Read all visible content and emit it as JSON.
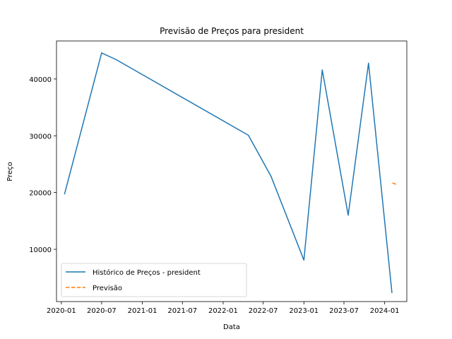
{
  "chart_data": {
    "type": "line",
    "title": "Previsão de Preços para president",
    "xlabel": "Data",
    "ylabel": "Preço",
    "x_tick_labels": [
      "2020-01",
      "2020-07",
      "2021-01",
      "2021-07",
      "2022-01",
      "2022-07",
      "2023-01",
      "2023-07",
      "2024-01"
    ],
    "x_tick_dates": [
      "2020-01-01",
      "2020-07-01",
      "2021-01-01",
      "2021-07-01",
      "2022-01-01",
      "2022-07-01",
      "2023-01-01",
      "2023-07-01",
      "2024-01-01"
    ],
    "y_ticks": [
      10000,
      20000,
      30000,
      40000
    ],
    "y_tick_labels": [
      "10000",
      "20000",
      "30000",
      "40000"
    ],
    "xlim": [
      "2019-12-10",
      "2024-04-10"
    ],
    "ylim": [
      800,
      46700
    ],
    "legend_position": "lower-left",
    "grid": false,
    "series": [
      {
        "name": "Histórico de Preços - president",
        "color": "#1f77b4",
        "style": "solid",
        "points": [
          {
            "x": "2020-01-15",
            "y": 19700
          },
          {
            "x": "2020-07-01",
            "y": 44600
          },
          {
            "x": "2020-09-05",
            "y": 43400
          },
          {
            "x": "2022-04-25",
            "y": 30100
          },
          {
            "x": "2022-08-05",
            "y": 22900
          },
          {
            "x": "2023-01-01",
            "y": 8100
          },
          {
            "x": "2023-03-25",
            "y": 41600
          },
          {
            "x": "2023-07-20",
            "y": 16000
          },
          {
            "x": "2023-10-20",
            "y": 42800
          },
          {
            "x": "2024-02-03",
            "y": 2300
          }
        ]
      },
      {
        "name": "Previsão",
        "color": "#ff7f0e",
        "style": "dashed",
        "points": [
          {
            "x": "2024-02-05",
            "y": 21700
          },
          {
            "x": "2024-02-25",
            "y": 21400
          }
        ]
      }
    ]
  }
}
